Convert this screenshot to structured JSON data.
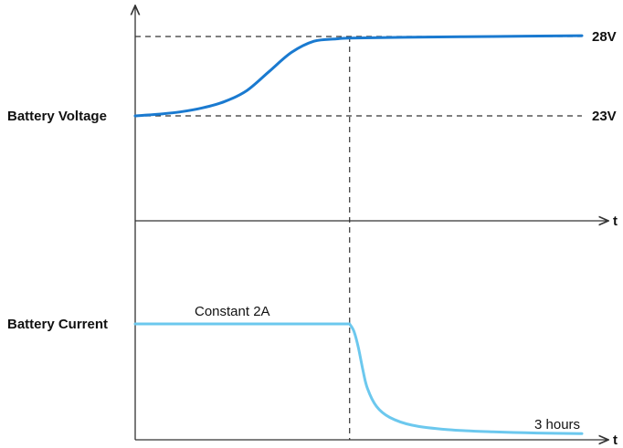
{
  "chart_data": [
    {
      "type": "line",
      "panel": "top",
      "ylabel": "Battery Voltage",
      "xlabel": "t",
      "reference_lines": [
        {
          "value": 28,
          "label": "28V"
        },
        {
          "value": 23,
          "label": "23V"
        }
      ],
      "transition_x": 0.48,
      "series": [
        {
          "color": "#1a7ad0",
          "points": [
            [
              0.0,
              23.0
            ],
            [
              0.05,
              23.1
            ],
            [
              0.1,
              23.25
            ],
            [
              0.15,
              23.5
            ],
            [
              0.2,
              23.9
            ],
            [
              0.25,
              24.6
            ],
            [
              0.3,
              25.8
            ],
            [
              0.35,
              27.0
            ],
            [
              0.4,
              27.7
            ],
            [
              0.45,
              27.85
            ],
            [
              0.48,
              27.9
            ],
            [
              0.6,
              27.95
            ],
            [
              0.8,
              28.0
            ],
            [
              1.0,
              28.05
            ]
          ]
        }
      ]
    },
    {
      "type": "line",
      "panel": "bottom",
      "ylabel": "Battery Current",
      "xlabel": "t",
      "annotations": [
        {
          "text": "Constant 2A",
          "x": 0.13,
          "y": 1.0
        },
        {
          "text": "3 hours",
          "x": 0.9,
          "y": 0.02
        }
      ],
      "transition_x": 0.48,
      "series": [
        {
          "color": "#6cc8ee",
          "points": [
            [
              0.0,
              1.0
            ],
            [
              0.48,
              1.0
            ],
            [
              0.49,
              0.93
            ],
            [
              0.5,
              0.78
            ],
            [
              0.51,
              0.58
            ],
            [
              0.52,
              0.42
            ],
            [
              0.54,
              0.26
            ],
            [
              0.57,
              0.16
            ],
            [
              0.62,
              0.09
            ],
            [
              0.7,
              0.05
            ],
            [
              0.8,
              0.03
            ],
            [
              0.9,
              0.02
            ],
            [
              1.0,
              0.015
            ]
          ]
        }
      ]
    }
  ]
}
